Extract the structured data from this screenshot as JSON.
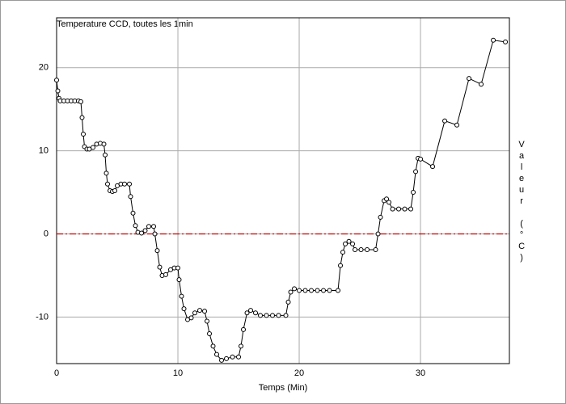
{
  "chart_data": {
    "type": "line",
    "title": "Temperature CCD, toutes les 1min",
    "xlabel": "Temps (Min)",
    "ylabel": "Valeur (°C)",
    "x": [
      0,
      0.1,
      0.2,
      0.3,
      0.6,
      0.9,
      1.2,
      1.5,
      1.8,
      2.0,
      2.1,
      2.2,
      2.3,
      2.5,
      2.7,
      3.0,
      3.3,
      3.6,
      3.9,
      4.0,
      4.1,
      4.2,
      4.4,
      4.6,
      4.8,
      5.0,
      5.3,
      5.6,
      6.0,
      6.1,
      6.3,
      6.5,
      6.7,
      7.0,
      7.3,
      7.6,
      8.0,
      8.1,
      8.3,
      8.5,
      8.7,
      9.0,
      9.4,
      9.7,
      10.0,
      10.1,
      10.3,
      10.5,
      10.8,
      11.1,
      11.4,
      11.8,
      12.2,
      12.4,
      12.6,
      12.9,
      13.2,
      13.6,
      14.0,
      14.5,
      15.0,
      15.2,
      15.4,
      15.7,
      16.0,
      16.4,
      16.8,
      17.3,
      17.8,
      18.3,
      18.9,
      19.1,
      19.3,
      19.6,
      20.0,
      20.5,
      21.0,
      21.5,
      22.0,
      22.5,
      23.2,
      23.4,
      23.6,
      23.8,
      24.1,
      24.4,
      24.6,
      25.1,
      25.6,
      26.3,
      26.5,
      26.7,
      27.0,
      27.2,
      27.4,
      27.7,
      28.2,
      28.7,
      29.2,
      29.4,
      29.6,
      29.8,
      30.0,
      31.0,
      32.0,
      33.0,
      34.0,
      35.0,
      36.0,
      37.0
    ],
    "series": [
      {
        "color": "#000000",
        "values": [
          18.5,
          17.2,
          16.3,
          16,
          16,
          16,
          16,
          16,
          16,
          15.9,
          14,
          12,
          10.5,
          10.2,
          10.2,
          10.4,
          10.8,
          10.9,
          10.8,
          9.5,
          7.3,
          6,
          5.2,
          5.1,
          5.2,
          5.8,
          6,
          6,
          6,
          4.5,
          2.5,
          1,
          0.2,
          0.1,
          0.4,
          0.9,
          0.9,
          0,
          -2,
          -4,
          -5,
          -4.9,
          -4.3,
          -4.1,
          -4.1,
          -5.5,
          -7.5,
          -9,
          -10.3,
          -10.1,
          -9.5,
          -9.2,
          -9.3,
          -10.5,
          -12,
          -13.5,
          -14.5,
          -15.2,
          -15,
          -14.8,
          -14.8,
          -13.5,
          -11.5,
          -9.5,
          -9.2,
          -9.5,
          -9.8,
          -9.8,
          -9.8,
          -9.8,
          -9.8,
          -8.2,
          -7,
          -6.6,
          -6.8,
          -6.8,
          -6.8,
          -6.8,
          -6.8,
          -6.8,
          -6.8,
          -3.8,
          -2.2,
          -1.2,
          -0.9,
          -1.2,
          -1.9,
          -1.9,
          -1.9,
          -1.9,
          0,
          2,
          4,
          4.2,
          3.8,
          3,
          3,
          3,
          3,
          5,
          7.5,
          9.1,
          9.0,
          8.1,
          13.6,
          13.1,
          18.7,
          18.0,
          23.3,
          23.1
        ]
      }
    ],
    "reference_line": {
      "value": 0,
      "color": "#c00000"
    },
    "xlim": [
      0,
      37.33
    ],
    "ylim": [
      -15.6,
      26
    ],
    "xticks": [
      0,
      10,
      20,
      30
    ],
    "yticks": [
      -10,
      0,
      10,
      20
    ],
    "grid": true
  }
}
